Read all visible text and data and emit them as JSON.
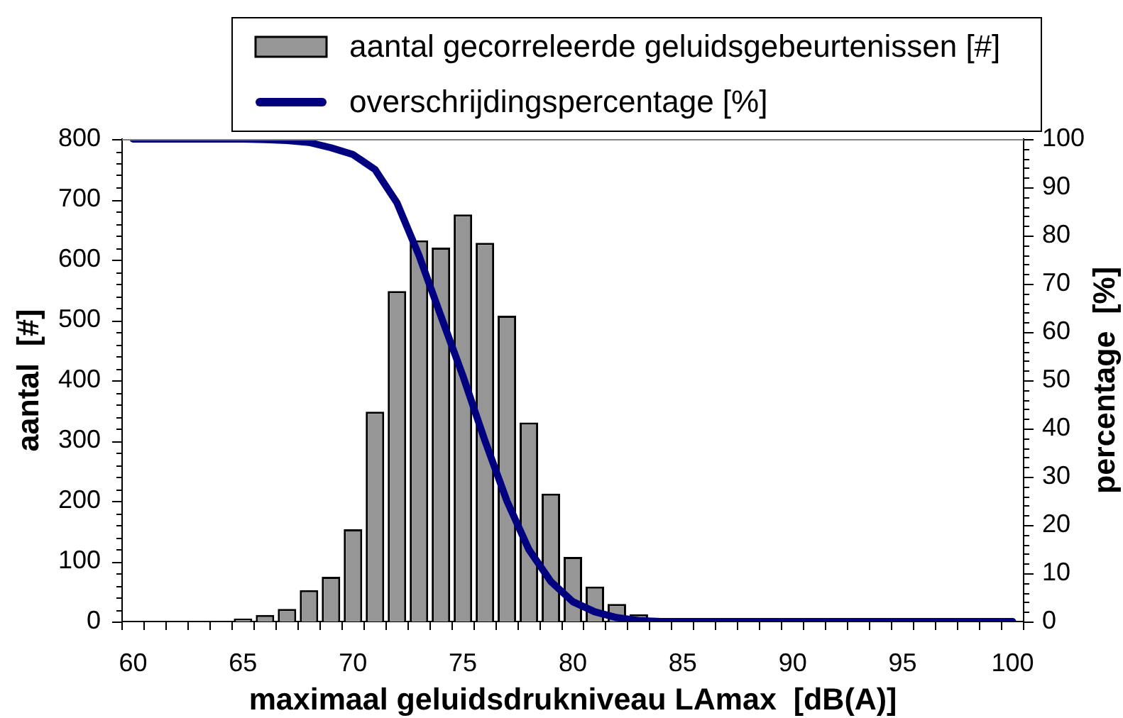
{
  "chart_data": {
    "type": "bar",
    "xlabel": "maximaal geluidsdrukniveau LAmax  [dB(A)]",
    "ylabel": "aantal  [#]",
    "y2label": "percentage  [%]",
    "categories": [
      "60",
      null,
      null,
      null,
      null,
      "65",
      null,
      null,
      null,
      null,
      "70",
      null,
      null,
      null,
      null,
      "75",
      null,
      null,
      null,
      null,
      "80",
      null,
      null,
      null,
      null,
      "85",
      null,
      null,
      null,
      null,
      "90",
      null,
      null,
      null,
      null,
      "95",
      null,
      null,
      null,
      null,
      "100"
    ],
    "series": [
      {
        "name": "aantal gecorreleerde geluidsgebeurtenissen [#]",
        "color": "#969696",
        "values": [
          0,
          0,
          0,
          0,
          0,
          5,
          11,
          21,
          52,
          74,
          153,
          348,
          548,
          632,
          620,
          675,
          628,
          507,
          330,
          212,
          107,
          58,
          29,
          12,
          0,
          0,
          0,
          0,
          0,
          0,
          0,
          0,
          0,
          0,
          0,
          0,
          0,
          0,
          0,
          0,
          0
        ]
      },
      {
        "name": "overschrijdingspercentage [%]",
        "type": "line",
        "axis": "y2",
        "color": "#000080",
        "values": [
          100,
          100,
          100,
          100,
          100,
          100,
          99.9,
          99.7,
          99.3,
          98.2,
          96.8,
          93.7,
          86.8,
          75.9,
          63.3,
          50.9,
          37.5,
          25,
          14.9,
          8.3,
          4.1,
          2,
          0.8,
          0.2,
          0,
          0,
          0,
          0,
          0,
          0,
          0,
          0,
          0,
          0,
          0,
          0,
          0,
          0,
          0,
          0,
          0
        ]
      }
    ],
    "ylim": [
      0,
      800
    ],
    "yticks": [
      0,
      {
        "value": 20,
        "label": null
      },
      {
        "value": 40,
        "label": null
      },
      {
        "value": 60,
        "label": null
      },
      {
        "value": 80,
        "label": null
      },
      100,
      {
        "value": 120,
        "label": null
      },
      {
        "value": 140,
        "label": null
      },
      {
        "value": 160,
        "label": null
      },
      {
        "value": 180,
        "label": null
      },
      200,
      {
        "value": 220,
        "label": null
      },
      {
        "value": 240,
        "label": null
      },
      {
        "value": 260,
        "label": null
      },
      {
        "value": 280,
        "label": null
      },
      300,
      {
        "value": 320,
        "label": null
      },
      {
        "value": 340,
        "label": null
      },
      {
        "value": 360,
        "label": null
      },
      {
        "value": 380,
        "label": null
      },
      400,
      {
        "value": 420,
        "label": null
      },
      {
        "value": 440,
        "label": null
      },
      {
        "value": 460,
        "label": null
      },
      {
        "value": 480,
        "label": null
      },
      500,
      {
        "value": 520,
        "label": null
      },
      {
        "value": 540,
        "label": null
      },
      {
        "value": 560,
        "label": null
      },
      {
        "value": 580,
        "label": null
      },
      600,
      {
        "value": 620,
        "label": null
      },
      {
        "value": 640,
        "label": null
      },
      {
        "value": 660,
        "label": null
      },
      {
        "value": 680,
        "label": null
      },
      700,
      {
        "value": 720,
        "label": null
      },
      {
        "value": 740,
        "label": null
      },
      {
        "value": 760,
        "label": null
      },
      {
        "value": 780,
        "label": null
      },
      800
    ],
    "y2lim": [
      0,
      100
    ],
    "y2ticks": [
      0,
      {
        "value": 2,
        "label": null
      },
      {
        "value": 4,
        "label": null
      },
      {
        "value": 6,
        "label": null
      },
      {
        "value": 8,
        "label": null
      },
      10,
      {
        "value": 12,
        "label": null
      },
      {
        "value": 14,
        "label": null
      },
      {
        "value": 16,
        "label": null
      },
      {
        "value": 18,
        "label": null
      },
      20,
      {
        "value": 22,
        "label": null
      },
      {
        "value": 24,
        "label": null
      },
      {
        "value": 26,
        "label": null
      },
      {
        "value": 28,
        "label": null
      },
      30,
      {
        "value": 32,
        "label": null
      },
      {
        "value": 34,
        "label": null
      },
      {
        "value": 36,
        "label": null
      },
      {
        "value": 38,
        "label": null
      },
      40,
      {
        "value": 42,
        "label": null
      },
      {
        "value": 44,
        "label": null
      },
      {
        "value": 46,
        "label": null
      },
      {
        "value": 48,
        "label": null
      },
      50,
      {
        "value": 52,
        "label": null
      },
      {
        "value": 54,
        "label": null
      },
      {
        "value": 56,
        "label": null
      },
      {
        "value": 58,
        "label": null
      },
      60,
      {
        "value": 62,
        "label": null
      },
      {
        "value": 64,
        "label": null
      },
      {
        "value": 66,
        "label": null
      },
      {
        "value": 68,
        "label": null
      },
      70,
      {
        "value": 72,
        "label": null
      },
      {
        "value": 74,
        "label": null
      },
      {
        "value": 76,
        "label": null
      },
      {
        "value": 78,
        "label": null
      },
      80,
      {
        "value": 82,
        "label": null
      },
      {
        "value": 84,
        "label": null
      },
      {
        "value": 86,
        "label": null
      },
      {
        "value": 88,
        "label": null
      },
      90,
      {
        "value": 92,
        "label": null
      },
      {
        "value": 94,
        "label": null
      },
      {
        "value": 96,
        "label": null
      },
      {
        "value": 98,
        "label": null
      },
      100
    ],
    "legend": "top right"
  }
}
